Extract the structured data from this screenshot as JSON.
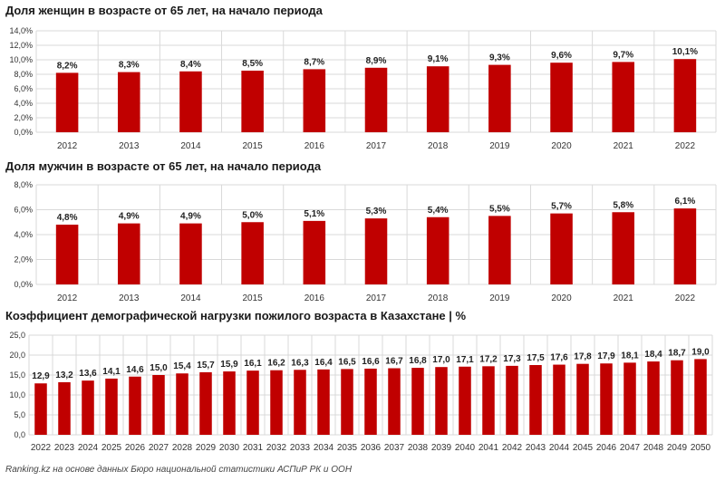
{
  "colors": {
    "bar": "#c00000",
    "grid": "#d9d9d9",
    "text": "#333333"
  },
  "source": "Ranking.kz на основе данных Бюро национальной статистики АСПиР РК и ООН",
  "chart_data": [
    {
      "type": "bar",
      "title": "Доля женщин в возрасте от 65 лет, на начало периода",
      "categories": [
        "2012",
        "2013",
        "2014",
        "2015",
        "2016",
        "2017",
        "2018",
        "2019",
        "2020",
        "2021",
        "2022"
      ],
      "values": [
        8.2,
        8.3,
        8.4,
        8.5,
        8.7,
        8.9,
        9.1,
        9.3,
        9.6,
        9.7,
        10.1
      ],
      "value_labels": [
        "8,2%",
        "8,3%",
        "8,4%",
        "8,5%",
        "8,7%",
        "8,9%",
        "9,1%",
        "9,3%",
        "9,6%",
        "9,7%",
        "10,1%"
      ],
      "yticks": [
        "0,0%",
        "2,0%",
        "4,0%",
        "6,0%",
        "8,0%",
        "10,0%",
        "12,0%",
        "14,0%"
      ],
      "ylim": [
        0,
        14
      ],
      "grid": true
    },
    {
      "type": "bar",
      "title": "Доля мужчин в возрасте от 65 лет, на начало периода",
      "categories": [
        "2012",
        "2013",
        "2014",
        "2015",
        "2016",
        "2017",
        "2018",
        "2019",
        "2020",
        "2021",
        "2022"
      ],
      "values": [
        4.8,
        4.9,
        4.9,
        5.0,
        5.1,
        5.3,
        5.4,
        5.5,
        5.7,
        5.8,
        6.1
      ],
      "value_labels": [
        "4,8%",
        "4,9%",
        "4,9%",
        "5,0%",
        "5,1%",
        "5,3%",
        "5,4%",
        "5,5%",
        "5,7%",
        "5,8%",
        "6,1%"
      ],
      "yticks": [
        "0,0%",
        "2,0%",
        "4,0%",
        "6,0%",
        "8,0%"
      ],
      "ylim": [
        0,
        8
      ],
      "grid": true
    },
    {
      "type": "bar",
      "title": "Коэффициент демографической нагрузки пожилого возраста в Казахстане | %",
      "categories": [
        "2022",
        "2023",
        "2024",
        "2025",
        "2026",
        "2027",
        "2028",
        "2029",
        "2030",
        "2031",
        "2032",
        "2033",
        "2034",
        "2035",
        "2036",
        "2037",
        "2038",
        "2039",
        "2040",
        "2041",
        "2042",
        "2043",
        "2044",
        "2045",
        "2046",
        "2047",
        "2048",
        "2049",
        "2050"
      ],
      "values": [
        12.9,
        13.2,
        13.6,
        14.1,
        14.6,
        15.0,
        15.4,
        15.7,
        15.9,
        16.1,
        16.2,
        16.3,
        16.4,
        16.5,
        16.6,
        16.7,
        16.8,
        17.0,
        17.1,
        17.2,
        17.3,
        17.5,
        17.6,
        17.8,
        17.9,
        18.1,
        18.4,
        18.7,
        19.0
      ],
      "value_labels": [
        "12,9",
        "13,2",
        "13,6",
        "14,1",
        "14,6",
        "15,0",
        "15,4",
        "15,7",
        "15,9",
        "16,1",
        "16,2",
        "16,3",
        "16,4",
        "16,5",
        "16,6",
        "16,7",
        "16,8",
        "17,0",
        "17,1",
        "17,2",
        "17,3",
        "17,5",
        "17,6",
        "17,8",
        "17,9",
        "18,1",
        "18,4",
        "18,7",
        "19,0"
      ],
      "yticks": [
        "0,0",
        "5,0",
        "10,0",
        "15,0",
        "20,0",
        "25,0"
      ],
      "ylim": [
        0,
        25
      ],
      "grid": true
    }
  ]
}
